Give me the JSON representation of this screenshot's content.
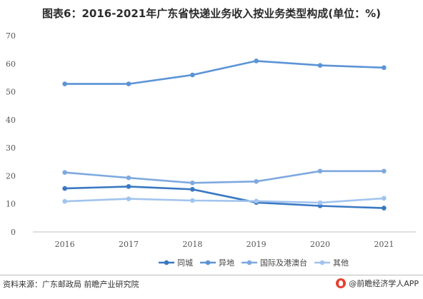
{
  "title": "图表6：2016-2021年广东省快递业务收入按业务类型构成(单位：%)",
  "footer": {
    "source": "资料来源：广东邮政局 前瞻产业研究院",
    "brand": "@前瞻经济学人APP"
  },
  "colors": {
    "tongcheng": "#3a78c2",
    "yidi": "#5b93d6",
    "guoji": "#7ea9e0",
    "qita": "#a2c4ee",
    "axis": "#bfbfbf"
  },
  "chart_data": {
    "type": "line",
    "categories": [
      "2016",
      "2017",
      "2018",
      "2019",
      "2020",
      "2021"
    ],
    "ylim": [
      0,
      70
    ],
    "yticks": [
      "0",
      "10",
      "20",
      "30",
      "40",
      "50",
      "60",
      "70"
    ],
    "grid": false,
    "legend_position": "bottom",
    "xlabel": "",
    "ylabel": "",
    "series": [
      {
        "name": "同城",
        "values": [
          15.5,
          16.2,
          15.2,
          10.5,
          9.3,
          8.5
        ]
      },
      {
        "name": "异地",
        "values": [
          52.8,
          52.8,
          56.0,
          61.0,
          59.4,
          58.6
        ]
      },
      {
        "name": "国际及港澳台",
        "values": [
          21.2,
          19.3,
          17.5,
          18.0,
          21.7,
          21.7
        ]
      },
      {
        "name": "其他",
        "values": [
          10.9,
          11.8,
          11.2,
          11.0,
          10.4,
          12.0
        ]
      }
    ]
  }
}
